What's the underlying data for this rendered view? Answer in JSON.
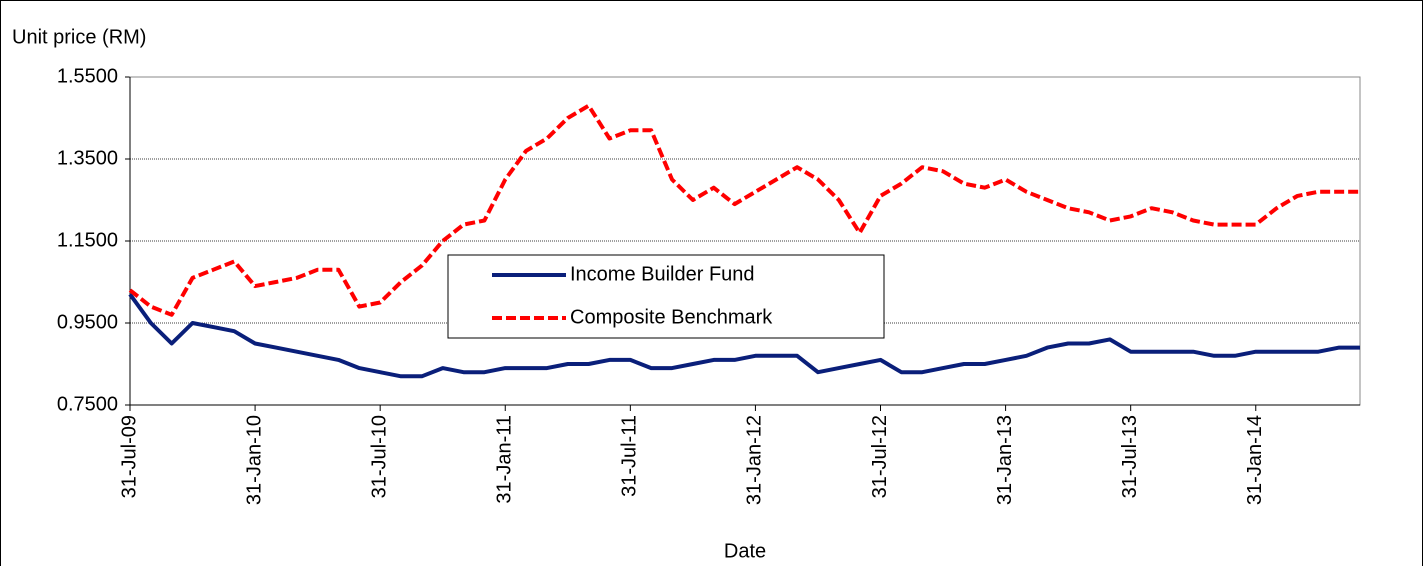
{
  "chart_data": {
    "type": "line",
    "y_label": "Unit price (RM)",
    "x_label": "Date",
    "x": [
      "31-Jul-09",
      "31-Aug-09",
      "30-Sep-09",
      "31-Oct-09",
      "30-Nov-09",
      "31-Dec-09",
      "31-Jan-10",
      "28-Feb-10",
      "31-Mar-10",
      "30-Apr-10",
      "31-May-10",
      "30-Jun-10",
      "31-Jul-10",
      "31-Aug-10",
      "30-Sep-10",
      "31-Oct-10",
      "30-Nov-10",
      "31-Dec-10",
      "31-Jan-11",
      "28-Feb-11",
      "31-Mar-11",
      "30-Apr-11",
      "31-May-11",
      "30-Jun-11",
      "31-Jul-11",
      "31-Aug-11",
      "30-Sep-11",
      "31-Oct-11",
      "30-Nov-11",
      "31-Dec-11",
      "31-Jan-12",
      "29-Feb-12",
      "31-Mar-12",
      "30-Apr-12",
      "31-May-12",
      "30-Jun-12",
      "31-Jul-12",
      "31-Aug-12",
      "30-Sep-12",
      "31-Oct-12",
      "30-Nov-12",
      "31-Dec-12",
      "31-Jan-13",
      "28-Feb-13",
      "31-Mar-13",
      "30-Apr-13",
      "31-May-13",
      "30-Jun-13",
      "31-Jul-13",
      "31-Aug-13",
      "30-Sep-13",
      "31-Oct-13",
      "30-Nov-13",
      "31-Dec-13",
      "31-Jan-14",
      "28-Feb-14",
      "31-Mar-14",
      "30-Apr-14",
      "31-May-14",
      "30-Jun-14"
    ],
    "series": [
      {
        "name": "Income Builder Fund",
        "color": "#0a1f7a",
        "dash": false,
        "values": [
          1.02,
          0.95,
          0.9,
          0.95,
          0.94,
          0.93,
          0.9,
          0.89,
          0.88,
          0.87,
          0.86,
          0.84,
          0.83,
          0.82,
          0.82,
          0.84,
          0.83,
          0.83,
          0.84,
          0.84,
          0.84,
          0.85,
          0.85,
          0.86,
          0.86,
          0.84,
          0.84,
          0.85,
          0.86,
          0.86,
          0.87,
          0.87,
          0.87,
          0.83,
          0.84,
          0.85,
          0.86,
          0.83,
          0.83,
          0.84,
          0.85,
          0.85,
          0.86,
          0.87,
          0.89,
          0.9,
          0.9,
          0.91,
          0.88,
          0.88,
          0.88,
          0.88,
          0.87,
          0.87,
          0.88,
          0.88,
          0.88,
          0.88,
          0.89,
          0.89
        ]
      },
      {
        "name": "Composite Benchmark",
        "color": "#ff0000",
        "dash": true,
        "values": [
          1.03,
          0.99,
          0.97,
          1.06,
          1.08,
          1.1,
          1.04,
          1.05,
          1.06,
          1.08,
          1.08,
          0.99,
          1.0,
          1.05,
          1.09,
          1.15,
          1.19,
          1.2,
          1.3,
          1.37,
          1.4,
          1.45,
          1.48,
          1.4,
          1.42,
          1.42,
          1.3,
          1.25,
          1.28,
          1.24,
          1.27,
          1.3,
          1.33,
          1.3,
          1.25,
          1.17,
          1.26,
          1.29,
          1.33,
          1.32,
          1.29,
          1.28,
          1.3,
          1.27,
          1.25,
          1.23,
          1.22,
          1.2,
          1.21,
          1.23,
          1.22,
          1.2,
          1.19,
          1.19,
          1.19,
          1.23,
          1.26,
          1.27,
          1.27,
          1.27
        ]
      }
    ],
    "xticks": [
      "31-Jul-09",
      "31-Jan-10",
      "31-Jul-10",
      "31-Jan-11",
      "31-Jul-11",
      "31-Jan-12",
      "31-Jul-12",
      "31-Jan-13",
      "31-Jul-13",
      "31-Jan-14"
    ],
    "ylim": [
      0.75,
      1.55
    ],
    "yticks": [
      {
        "value": 0.75,
        "label": "0.7500"
      },
      {
        "value": 0.95,
        "label": "0.9500"
      },
      {
        "value": 1.15,
        "label": "1.1500"
      },
      {
        "value": 1.35,
        "label": "1.3500"
      },
      {
        "value": 1.55,
        "label": "1.5500"
      }
    ],
    "grid": true,
    "legend": "center"
  }
}
